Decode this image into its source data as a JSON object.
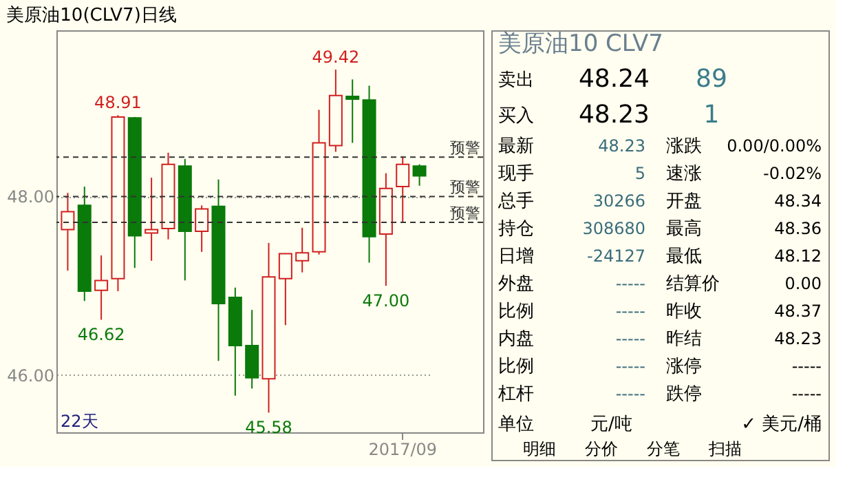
{
  "chart_data": [
    {
      "type": "candlestick",
      "title": "美原油10(CLV7)日线",
      "categories": [
        null,
        null,
        null,
        null,
        null,
        null,
        null,
        null,
        null,
        null,
        null,
        null,
        null,
        null,
        null,
        null,
        null,
        null,
        null,
        null,
        "2017/09",
        null
      ],
      "ohlc": [
        [
          47.63,
          48.04,
          47.17,
          47.83
        ],
        [
          47.9,
          48.11,
          46.83,
          46.94
        ],
        [
          46.95,
          47.34,
          46.62,
          47.06
        ],
        [
          47.08,
          48.91,
          46.94,
          48.89
        ],
        [
          48.88,
          48.89,
          47.2,
          47.56
        ],
        [
          47.59,
          48.21,
          47.28,
          47.63
        ],
        [
          47.64,
          48.49,
          47.52,
          48.36
        ],
        [
          48.34,
          48.42,
          47.06,
          47.61
        ],
        [
          47.61,
          47.9,
          47.38,
          47.86
        ],
        [
          47.89,
          48.19,
          46.16,
          46.8
        ],
        [
          46.87,
          46.98,
          45.77,
          46.33
        ],
        [
          46.33,
          46.73,
          45.85,
          45.97
        ],
        [
          45.96,
          47.48,
          45.58,
          47.1
        ],
        [
          47.08,
          47.36,
          46.56,
          47.36
        ],
        [
          47.28,
          47.65,
          47.15,
          47.37
        ],
        [
          47.38,
          48.97,
          47.35,
          48.6
        ],
        [
          48.57,
          49.42,
          48.5,
          49.13
        ],
        [
          49.12,
          49.31,
          48.6,
          49.09
        ],
        [
          49.08,
          49.24,
          47.26,
          47.55
        ],
        [
          47.58,
          48.26,
          47.0,
          48.09
        ],
        [
          48.11,
          48.45,
          47.71,
          48.36
        ],
        [
          48.34,
          48.36,
          48.12,
          48.23
        ]
      ],
      "colors": [
        "#d02020",
        "#0a7a0a",
        "#d02020",
        "#d02020",
        "#0a7a0a",
        "#d02020",
        "#d02020",
        "#0a7a0a",
        "#d02020",
        "#0a7a0a",
        "#0a7a0a",
        "#0a7a0a",
        "#d02020",
        "#d02020",
        "#d02020",
        "#d02020",
        "#d02020",
        "#0a7a0a",
        "#0a7a0a",
        "#d02020",
        "#d02020",
        "#0a7a0a"
      ],
      "ylim": [
        45.36,
        49.86
      ],
      "yticks": [
        {
          "value": 46,
          "label": "46.00"
        },
        {
          "value": 48,
          "label": "48.00"
        }
      ],
      "grid": "y",
      "ref_lines": [
        {
          "axis": "y",
          "value": 48.44,
          "label": "预警",
          "line_style": "dashed",
          "color": "#333333"
        },
        {
          "axis": "y",
          "value": 48.0,
          "label": "预警",
          "line_style": "dashed",
          "color": "#333333"
        },
        {
          "axis": "y",
          "value": 47.71,
          "label": "预警",
          "line_style": "dashed",
          "color": "#333333"
        }
      ],
      "annotations": [
        {
          "text": "48.91",
          "y": 48.91
        },
        {
          "text": "46.62",
          "y": 46.62
        },
        {
          "text": "45.58",
          "y": 45.58
        },
        {
          "text": "49.42",
          "y": 49.42
        },
        {
          "text": "47.00",
          "y": 47.0
        },
        "22天"
      ]
    },
    {
      "type": "other",
      "title": "美原油10  CLV7",
      "annotations": [
        "卖出",
        "48.24",
        "89",
        "买入",
        "48.23",
        "1",
        "最新",
        "48.23",
        "涨跌",
        "0.00/0.00%",
        "现手",
        "5",
        "速涨",
        "-0.02%",
        "总手",
        "30266",
        "开盘",
        "48.34",
        "持仓",
        "308680",
        "最高",
        "48.36",
        "日增",
        "-24127",
        "最低",
        "48.12",
        "外盘",
        "-----",
        "结算价",
        "0.00",
        "比例",
        "-----",
        "昨收",
        "48.37",
        "内盘",
        "-----",
        "昨结",
        "48.23",
        "比例",
        "-----",
        "涨停",
        "-----",
        "杠杆",
        "-----",
        "跌停",
        "-----",
        "单位",
        "元/吨",
        "✓ 美元/桶",
        "明细",
        "分价",
        "分笔",
        "扫描"
      ]
    }
  ]
}
